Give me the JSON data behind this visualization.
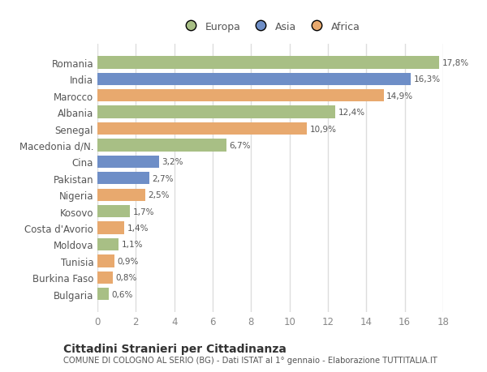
{
  "countries": [
    "Romania",
    "India",
    "Marocco",
    "Albania",
    "Senegal",
    "Macedonia d/N.",
    "Cina",
    "Pakistan",
    "Nigeria",
    "Kosovo",
    "Costa d'Avorio",
    "Moldova",
    "Tunisia",
    "Burkina Faso",
    "Bulgaria"
  ],
  "values": [
    17.8,
    16.3,
    14.9,
    12.4,
    10.9,
    6.7,
    3.2,
    2.7,
    2.5,
    1.7,
    1.4,
    1.1,
    0.9,
    0.8,
    0.6
  ],
  "labels": [
    "17,8%",
    "16,3%",
    "14,9%",
    "12,4%",
    "10,9%",
    "6,7%",
    "3,2%",
    "2,7%",
    "2,5%",
    "1,7%",
    "1,4%",
    "1,1%",
    "0,9%",
    "0,8%",
    "0,6%"
  ],
  "colors": [
    "#a8bf85",
    "#6e8ec7",
    "#e8a96e",
    "#a8bf85",
    "#e8a96e",
    "#a8bf85",
    "#6e8ec7",
    "#6e8ec7",
    "#e8a96e",
    "#a8bf85",
    "#e8a96e",
    "#a8bf85",
    "#e8a96e",
    "#e8a96e",
    "#a8bf85"
  ],
  "legend_labels": [
    "Europa",
    "Asia",
    "Africa"
  ],
  "legend_colors": [
    "#a8bf85",
    "#6e8ec7",
    "#e8a96e"
  ],
  "title": "Cittadini Stranieri per Cittadinanza",
  "subtitle": "COMUNE DI COLOGNO AL SERIO (BG) - Dati ISTAT al 1° gennaio - Elaborazione TUTTITALIA.IT",
  "xlim": [
    0,
    18
  ],
  "xticks": [
    0,
    2,
    4,
    6,
    8,
    10,
    12,
    14,
    16,
    18
  ],
  "bg_color": "#ffffff",
  "bar_height": 0.75
}
